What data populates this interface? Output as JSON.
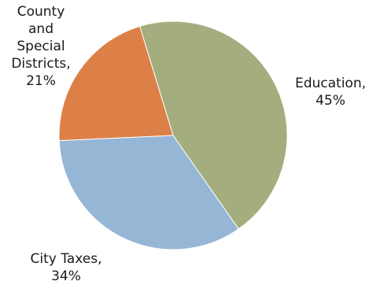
{
  "chart_data": {
    "type": "pie",
    "title": "",
    "slices": [
      {
        "label": "Education",
        "value": 45,
        "color": "#a3ad7e"
      },
      {
        "label": "City Taxes",
        "value": 34,
        "color": "#96b6d6"
      },
      {
        "label": "County and Special Districts",
        "value": 21,
        "color": "#dd8047"
      }
    ],
    "labels": {
      "education": [
        "Education,",
        "45%"
      ],
      "city": [
        "City Taxes,",
        "34%"
      ],
      "county": [
        "County",
        "and",
        "Special",
        "Districts,",
        "21%"
      ]
    }
  }
}
